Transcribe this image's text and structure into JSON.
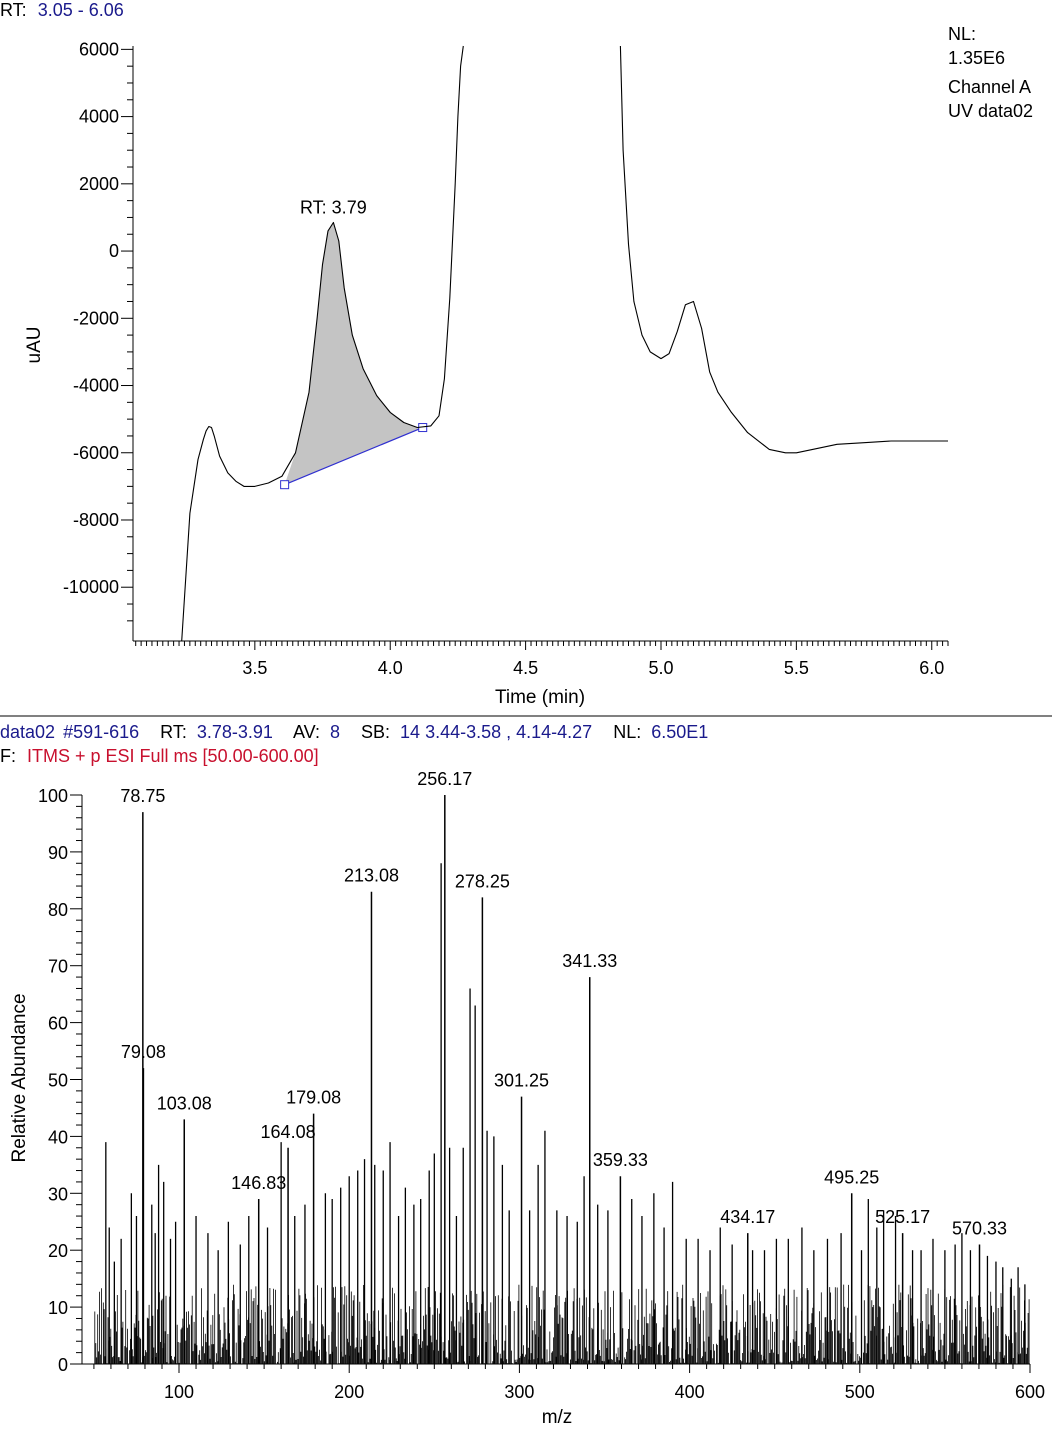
{
  "chart_data": [
    {
      "type": "line",
      "subtype": "chromatogram",
      "header": {
        "prefix": "RT:",
        "range": "3.05 - 6.06"
      },
      "info": [
        "NL:",
        "1.35E6",
        "Channel A",
        "UV data02"
      ],
      "xlabel": "Time (min)",
      "ylabel": "uAU",
      "xlim": [
        3.05,
        6.06
      ],
      "ylim": [
        -11600,
        6100
      ],
      "x_ticks": [
        3.5,
        4.0,
        4.5,
        5.0,
        5.5,
        6.0
      ],
      "x_tick_labels": [
        "3.5",
        "4.0",
        "4.5",
        "5.0",
        "5.5",
        "6.0"
      ],
      "y_ticks": [
        6000,
        4000,
        2000,
        0,
        -2000,
        -4000,
        -6000,
        -8000,
        -10000
      ],
      "y_tick_labels": [
        "6000",
        "4000",
        "2000",
        "0",
        "-2000",
        "-4000",
        "-6000",
        "-8000",
        "-10000"
      ],
      "series": [
        {
          "x": [
            3.23,
            3.26,
            3.29,
            3.31,
            3.32,
            3.33,
            3.34,
            3.35,
            3.37,
            3.4,
            3.43,
            3.46,
            3.5,
            3.55,
            3.6,
            3.65,
            3.7,
            3.73,
            3.75,
            3.77,
            3.79,
            3.81,
            3.83,
            3.86,
            3.9,
            3.95,
            4.0,
            4.05,
            4.1,
            4.15,
            4.18,
            4.2,
            4.22,
            4.24,
            4.25,
            4.26,
            4.27
          ],
          "y": [
            -11600,
            -7800,
            -6200,
            -5600,
            -5350,
            -5220,
            -5250,
            -5500,
            -6100,
            -6600,
            -6850,
            -7000,
            -7000,
            -6900,
            -6700,
            -6000,
            -4200,
            -2000,
            -400,
            600,
            850,
            300,
            -1100,
            -2500,
            -3500,
            -4300,
            -4800,
            -5100,
            -5250,
            -5200,
            -4900,
            -3800,
            -1400,
            2000,
            4000,
            5500,
            6100
          ]
        },
        {
          "x": [
            4.85,
            4.86,
            4.88,
            4.9,
            4.93,
            4.96,
            5.0,
            5.03,
            5.06,
            5.09,
            5.12,
            5.15,
            5.18,
            5.21,
            5.26,
            5.32,
            5.4,
            5.46,
            5.5,
            5.56,
            5.65,
            5.75,
            5.85,
            5.95,
            6.06
          ],
          "y": [
            6100,
            3000,
            200,
            -1500,
            -2500,
            -3000,
            -3200,
            -3050,
            -2400,
            -1600,
            -1500,
            -2300,
            -3600,
            -4200,
            -4800,
            -5400,
            -5900,
            -6000,
            -6000,
            -5900,
            -5750,
            -5700,
            -5650,
            -5650,
            -5650
          ]
        }
      ],
      "integrated_peak": {
        "label": "RT: 3.79",
        "start": [
          3.61,
          -6950
        ],
        "end": [
          4.12,
          -5250
        ],
        "apex": [
          3.79,
          850
        ]
      }
    },
    {
      "type": "bar",
      "subtype": "mass-spectrum",
      "header": {
        "scan_name": "data02",
        "scan_range": "#591-616",
        "rt_label": "RT:",
        "rt_value": "3.78-3.91",
        "av_label": "AV:",
        "av_value": "8",
        "sb_label": "SB:",
        "sb_value": "14  3.44-3.58 , 4.14-4.27",
        "nl_label": "NL:",
        "nl_value": "6.50E1",
        "filter_label": "F:",
        "filter_value": "ITMS + p ESI Full ms [50.00-600.00]"
      },
      "xlabel": "m/z",
      "ylabel": "Relative Abundance",
      "xlim": [
        43,
        600
      ],
      "ylim": [
        0,
        100
      ],
      "x_ticks": [
        100,
        200,
        300,
        400,
        500,
        600
      ],
      "x_tick_labels": [
        "100",
        "200",
        "300",
        "400",
        "500",
        "600"
      ],
      "y_ticks": [
        0,
        10,
        20,
        30,
        40,
        50,
        60,
        70,
        80,
        90,
        100
      ],
      "y_tick_labels": [
        "0",
        "10",
        "20",
        "30",
        "40",
        "50",
        "60",
        "70",
        "80",
        "90",
        "100"
      ],
      "labeled_peaks": [
        {
          "mz": 78.75,
          "label": "78.75",
          "value": 97
        },
        {
          "mz": 79.08,
          "label": "79.08",
          "value": 52
        },
        {
          "mz": 103.08,
          "label": "103.08",
          "value": 43
        },
        {
          "mz": 146.83,
          "label": "146.83",
          "value": 29
        },
        {
          "mz": 164.08,
          "label": "164.08",
          "value": 38
        },
        {
          "mz": 179.08,
          "label": "179.08",
          "value": 44
        },
        {
          "mz": 213.08,
          "label": "213.08",
          "value": 83
        },
        {
          "mz": 256.17,
          "label": "256.17",
          "value": 100
        },
        {
          "mz": 278.25,
          "label": "278.25",
          "value": 82
        },
        {
          "mz": 301.25,
          "label": "301.25",
          "value": 47
        },
        {
          "mz": 341.33,
          "label": "341.33",
          "value": 68
        },
        {
          "mz": 359.33,
          "label": "359.33",
          "value": 33
        },
        {
          "mz": 434.17,
          "label": "434.17",
          "value": 23
        },
        {
          "mz": 495.25,
          "label": "495.25",
          "value": 30
        },
        {
          "mz": 525.17,
          "label": "525.17",
          "value": 23
        },
        {
          "mz": 570.33,
          "label": "570.33",
          "value": 21
        }
      ],
      "other_peaks": [
        {
          "mz": 57,
          "value": 39
        },
        {
          "mz": 59,
          "value": 24
        },
        {
          "mz": 62,
          "value": 18
        },
        {
          "mz": 66,
          "value": 22
        },
        {
          "mz": 72,
          "value": 30
        },
        {
          "mz": 75,
          "value": 26
        },
        {
          "mz": 84,
          "value": 28
        },
        {
          "mz": 86,
          "value": 23
        },
        {
          "mz": 88,
          "value": 35
        },
        {
          "mz": 91,
          "value": 32
        },
        {
          "mz": 95,
          "value": 22
        },
        {
          "mz": 98,
          "value": 25
        },
        {
          "mz": 110,
          "value": 26
        },
        {
          "mz": 117,
          "value": 23
        },
        {
          "mz": 123,
          "value": 20
        },
        {
          "mz": 129,
          "value": 25
        },
        {
          "mz": 136,
          "value": 21
        },
        {
          "mz": 141,
          "value": 26
        },
        {
          "mz": 152,
          "value": 24
        },
        {
          "mz": 160,
          "value": 39
        },
        {
          "mz": 168,
          "value": 26
        },
        {
          "mz": 174,
          "value": 28
        },
        {
          "mz": 186,
          "value": 30
        },
        {
          "mz": 190,
          "value": 29
        },
        {
          "mz": 195,
          "value": 31
        },
        {
          "mz": 200,
          "value": 33
        },
        {
          "mz": 205,
          "value": 34
        },
        {
          "mz": 209,
          "value": 36
        },
        {
          "mz": 215,
          "value": 35
        },
        {
          "mz": 220,
          "value": 34
        },
        {
          "mz": 224,
          "value": 39
        },
        {
          "mz": 229,
          "value": 26
        },
        {
          "mz": 233,
          "value": 31
        },
        {
          "mz": 238,
          "value": 28
        },
        {
          "mz": 242,
          "value": 29
        },
        {
          "mz": 247,
          "value": 34
        },
        {
          "mz": 250,
          "value": 37
        },
        {
          "mz": 254,
          "value": 88
        },
        {
          "mz": 259,
          "value": 38
        },
        {
          "mz": 263,
          "value": 26
        },
        {
          "mz": 267,
          "value": 38
        },
        {
          "mz": 271,
          "value": 66
        },
        {
          "mz": 274,
          "value": 63
        },
        {
          "mz": 281,
          "value": 41
        },
        {
          "mz": 285,
          "value": 40
        },
        {
          "mz": 290,
          "value": 35
        },
        {
          "mz": 294,
          "value": 27
        },
        {
          "mz": 306,
          "value": 27
        },
        {
          "mz": 311,
          "value": 35
        },
        {
          "mz": 315,
          "value": 41
        },
        {
          "mz": 322,
          "value": 27
        },
        {
          "mz": 328,
          "value": 26
        },
        {
          "mz": 334,
          "value": 25
        },
        {
          "mz": 338,
          "value": 33
        },
        {
          "mz": 346,
          "value": 28
        },
        {
          "mz": 352,
          "value": 27
        },
        {
          "mz": 366,
          "value": 29
        },
        {
          "mz": 372,
          "value": 26
        },
        {
          "mz": 379,
          "value": 30
        },
        {
          "mz": 385,
          "value": 24
        },
        {
          "mz": 390,
          "value": 32
        },
        {
          "mz": 398,
          "value": 22
        },
        {
          "mz": 405,
          "value": 22
        },
        {
          "mz": 412,
          "value": 20
        },
        {
          "mz": 418,
          "value": 24
        },
        {
          "mz": 425,
          "value": 21
        },
        {
          "mz": 437,
          "value": 20
        },
        {
          "mz": 444,
          "value": 20
        },
        {
          "mz": 451,
          "value": 22
        },
        {
          "mz": 458,
          "value": 22
        },
        {
          "mz": 466,
          "value": 24
        },
        {
          "mz": 473,
          "value": 20
        },
        {
          "mz": 481,
          "value": 22
        },
        {
          "mz": 489,
          "value": 23
        },
        {
          "mz": 501,
          "value": 20
        },
        {
          "mz": 505,
          "value": 29
        },
        {
          "mz": 510,
          "value": 24
        },
        {
          "mz": 514,
          "value": 27
        },
        {
          "mz": 521,
          "value": 26
        },
        {
          "mz": 531,
          "value": 20
        },
        {
          "mz": 536,
          "value": 20
        },
        {
          "mz": 543,
          "value": 22
        },
        {
          "mz": 550,
          "value": 20
        },
        {
          "mz": 556,
          "value": 21
        },
        {
          "mz": 560,
          "value": 23
        },
        {
          "mz": 565,
          "value": 20
        },
        {
          "mz": 575,
          "value": 19
        },
        {
          "mz": 580,
          "value": 18
        },
        {
          "mz": 584,
          "value": 17
        },
        {
          "mz": 589,
          "value": 15
        },
        {
          "mz": 593,
          "value": 17
        },
        {
          "mz": 597,
          "value": 14
        }
      ],
      "noise": {
        "mz_start": 50,
        "mz_end": 600,
        "step": 0.55,
        "max_value": 14
      }
    }
  ]
}
